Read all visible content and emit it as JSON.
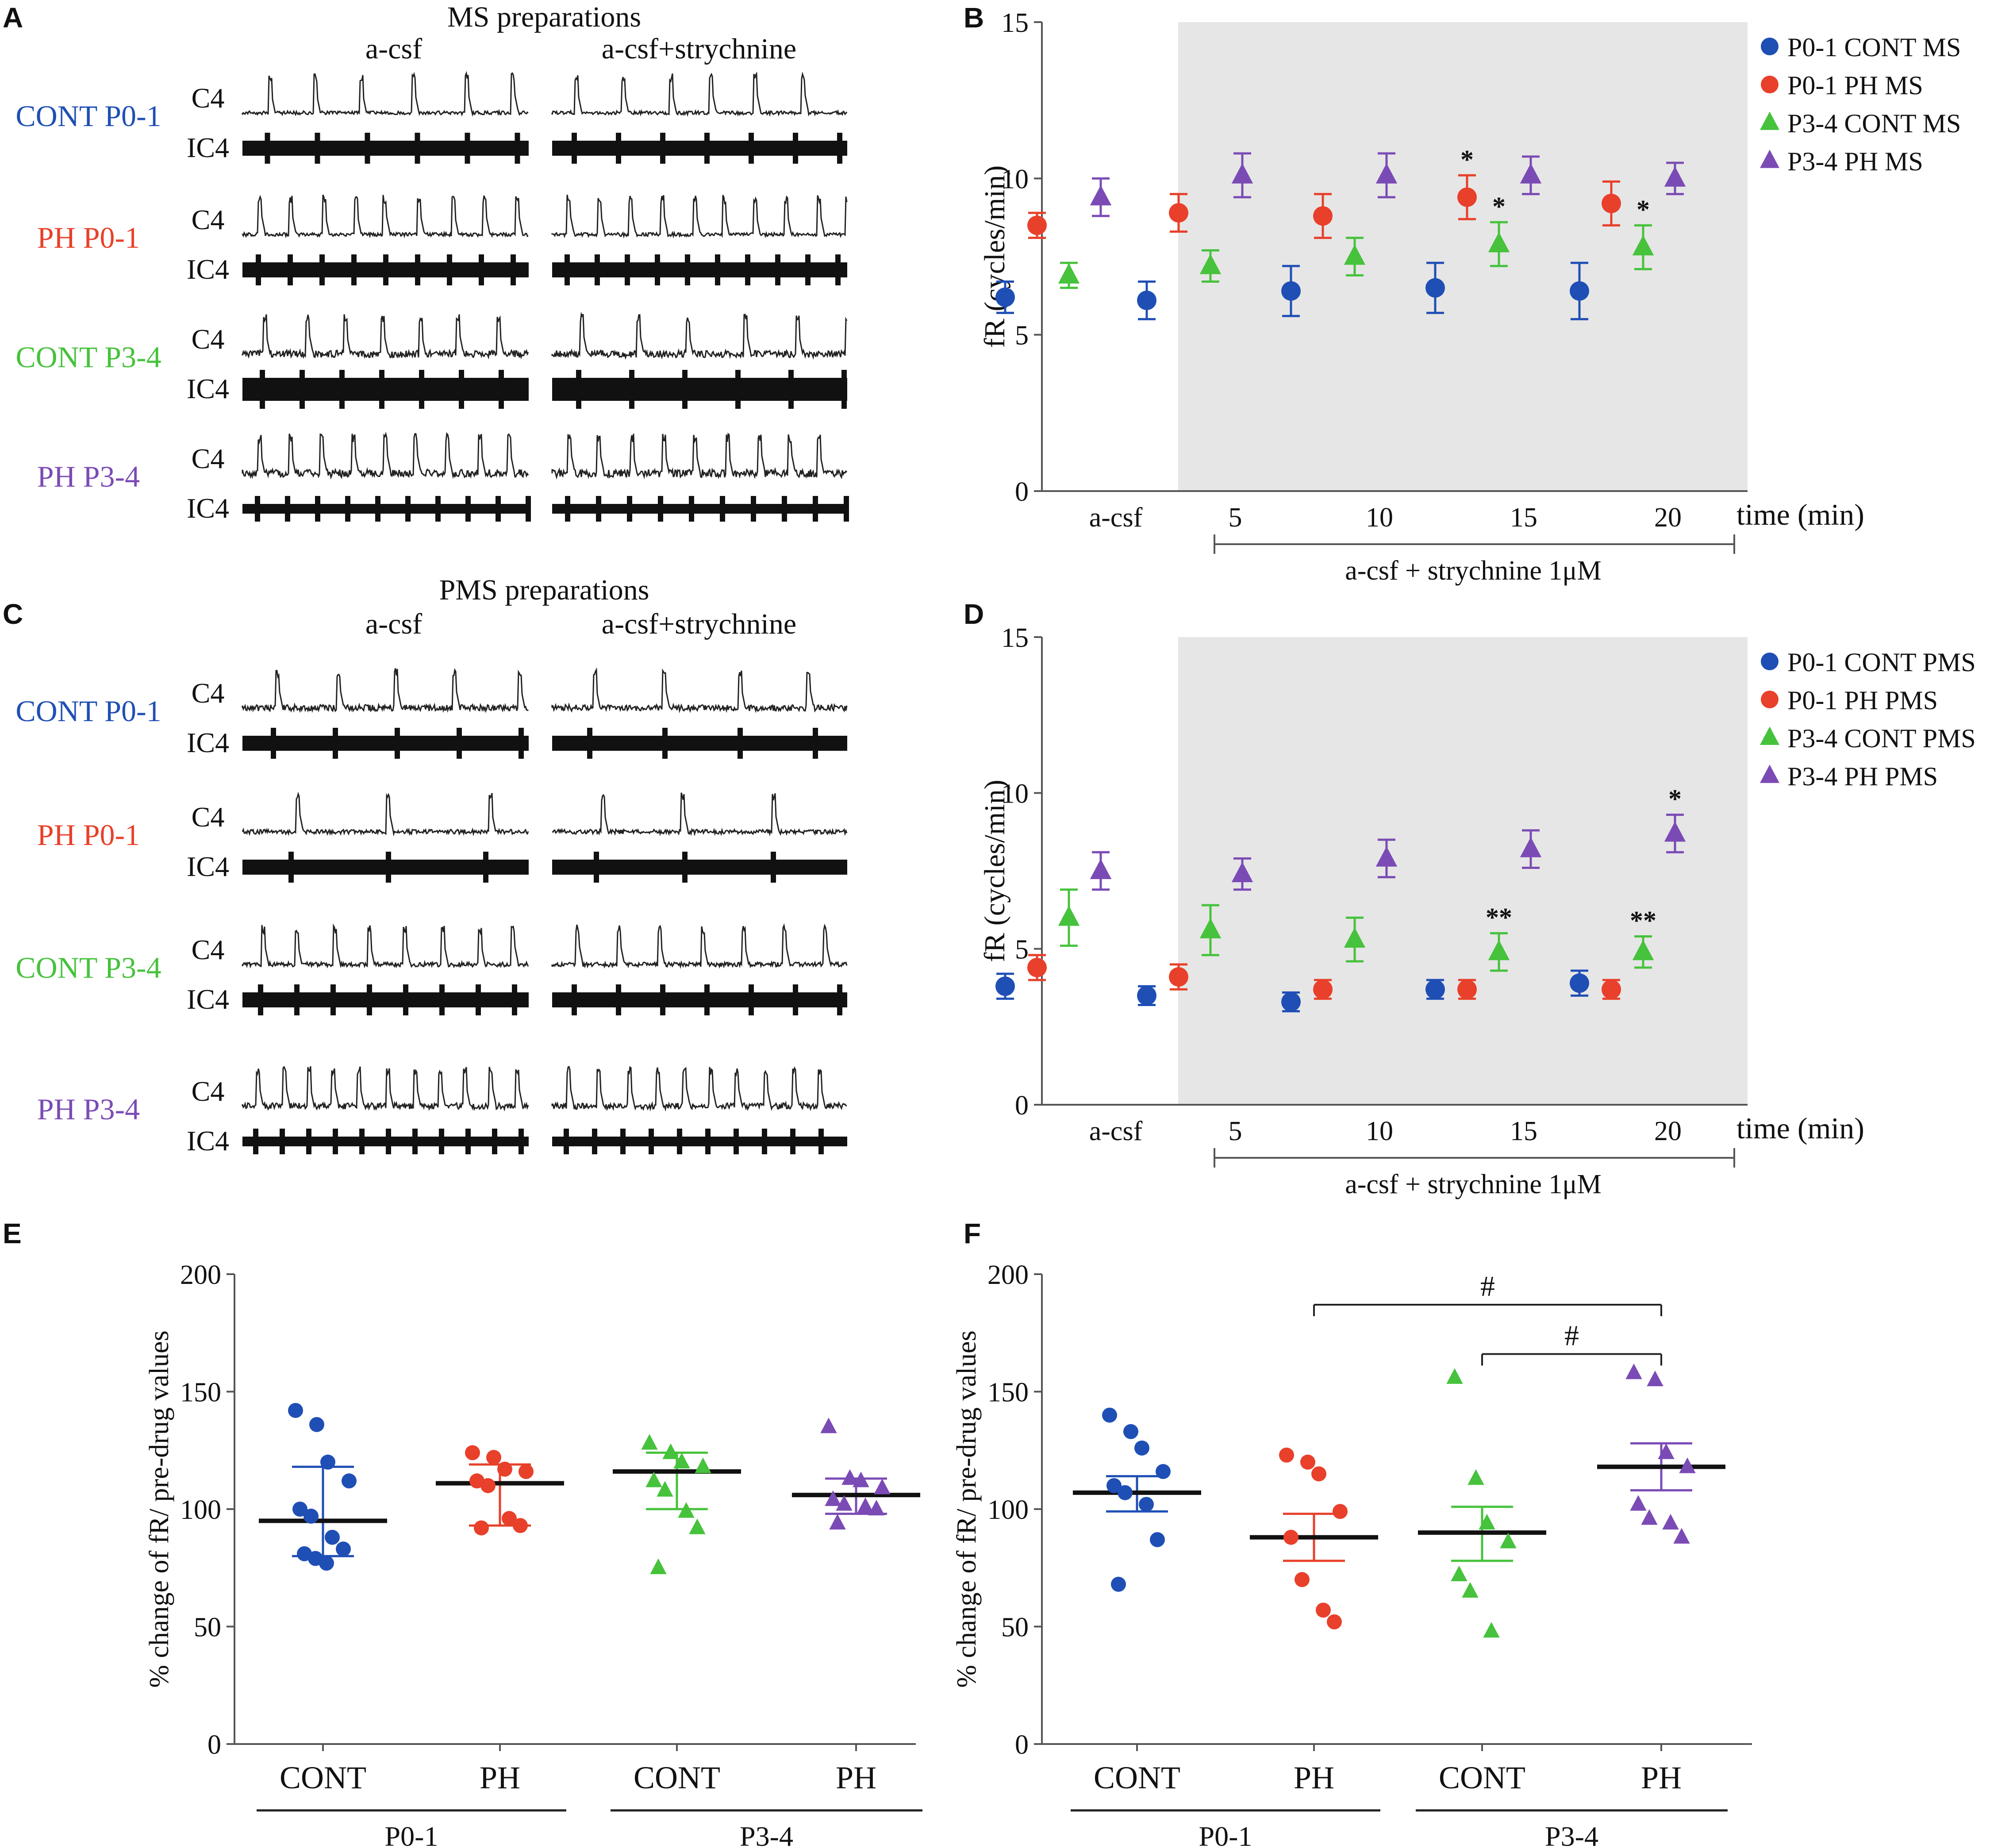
{
  "colors": {
    "cont_p01": "#1f4fb5",
    "ph_p01": "#e8402a",
    "cont_p34": "#46c23c",
    "ph_p34": "#7b4bb5",
    "shade": "#e6e6e6",
    "ink": "#111111"
  },
  "panel_letters": [
    "A",
    "B",
    "C",
    "D",
    "E",
    "F"
  ],
  "traces": [
    {
      "panel": "A",
      "title": "MS preparations",
      "cond_left": "a-csf",
      "cond_right": "a-csf+strychnine",
      "rows": [
        {
          "label": "CONT P0-1",
          "group": "cont_p01",
          "c4": "C4",
          "ic4": "IC4"
        },
        {
          "label": "PH P0-1",
          "group": "ph_p01",
          "c4": "C4",
          "ic4": "IC4"
        },
        {
          "label": "CONT P3-4",
          "group": "cont_p34",
          "c4": "C4",
          "ic4": "IC4"
        },
        {
          "label": "PH P3-4",
          "group": "ph_p34",
          "c4": "C4",
          "ic4": "IC4"
        }
      ]
    },
    {
      "panel": "C",
      "title": "PMS preparations",
      "cond_left": "a-csf",
      "cond_right": "a-csf+strychnine",
      "rows": [
        {
          "label": "CONT P0-1",
          "group": "cont_p01",
          "c4": "C4",
          "ic4": "IC4"
        },
        {
          "label": "PH P0-1",
          "group": "ph_p01",
          "c4": "C4",
          "ic4": "IC4"
        },
        {
          "label": "CONT P3-4",
          "group": "cont_p34",
          "c4": "C4",
          "ic4": "IC4"
        },
        {
          "label": "PH P3-4",
          "group": "ph_p34",
          "c4": "C4",
          "ic4": "IC4"
        }
      ]
    }
  ],
  "chart_data": [
    {
      "panel": "B",
      "type": "scatter",
      "ylabel": "fR (cycles/min)",
      "xlabel": "time (min)",
      "ylim": [
        0,
        15
      ],
      "yticks": [
        0,
        5,
        10,
        15
      ],
      "xticks": [
        "a-csf",
        "5",
        "10",
        "15",
        "20"
      ],
      "drug_label": "a-csf + strychnine 1μM",
      "shaded_region": "drug application (5–20 min)",
      "legend_position": "top-right",
      "series": [
        {
          "name": "P0-1 CONT MS",
          "group": "cont_p01",
          "marker": "circle",
          "values": [
            6.2,
            6.1,
            6.4,
            6.5,
            6.4
          ],
          "errors": [
            0.5,
            0.6,
            0.8,
            0.8,
            0.9
          ],
          "stars": [
            "",
            "",
            "",
            "",
            ""
          ]
        },
        {
          "name": "P0-1 PH MS",
          "group": "ph_p01",
          "marker": "circle",
          "values": [
            8.5,
            8.9,
            8.8,
            9.4,
            9.2
          ],
          "errors": [
            0.4,
            0.6,
            0.7,
            0.7,
            0.7
          ],
          "stars": [
            "",
            "",
            "",
            "*",
            ""
          ]
        },
        {
          "name": "P3-4 CONT MS",
          "group": "cont_p34",
          "marker": "triangle",
          "values": [
            6.9,
            7.2,
            7.5,
            7.9,
            7.8
          ],
          "errors": [
            0.4,
            0.5,
            0.6,
            0.7,
            0.7
          ],
          "stars": [
            "",
            "",
            "",
            "*",
            "*"
          ]
        },
        {
          "name": "P3-4 PH MS",
          "group": "ph_p34",
          "marker": "triangle",
          "values": [
            9.4,
            10.1,
            10.1,
            10.1,
            10.0
          ],
          "errors": [
            0.6,
            0.7,
            0.7,
            0.6,
            0.5
          ],
          "stars": [
            "",
            "",
            "",
            "",
            ""
          ]
        }
      ]
    },
    {
      "panel": "D",
      "type": "scatter",
      "ylabel": "fR (cycles/min)",
      "xlabel": "time (min)",
      "ylim": [
        0,
        15
      ],
      "yticks": [
        0,
        5,
        10,
        15
      ],
      "xticks": [
        "a-csf",
        "5",
        "10",
        "15",
        "20"
      ],
      "drug_label": "a-csf + strychnine 1μM",
      "shaded_region": "drug application (5–20 min)",
      "legend_position": "top-right",
      "series": [
        {
          "name": "P0-1 CONT PMS",
          "group": "cont_p01",
          "marker": "circle",
          "values": [
            3.8,
            3.5,
            3.3,
            3.7,
            3.9
          ],
          "errors": [
            0.4,
            0.3,
            0.3,
            0.3,
            0.4
          ],
          "stars": [
            "",
            "",
            "",
            "",
            ""
          ]
        },
        {
          "name": "P0-1 PH PMS",
          "group": "ph_p01",
          "marker": "circle",
          "values": [
            4.4,
            4.1,
            3.7,
            3.7,
            3.7
          ],
          "errors": [
            0.4,
            0.4,
            0.3,
            0.3,
            0.3
          ],
          "stars": [
            "",
            "",
            "",
            "",
            ""
          ]
        },
        {
          "name": "P3-4 CONT PMS",
          "group": "cont_p34",
          "marker": "triangle",
          "values": [
            6.0,
            5.6,
            5.3,
            4.9,
            4.9
          ],
          "errors": [
            0.9,
            0.8,
            0.7,
            0.6,
            0.5
          ],
          "stars": [
            "",
            "",
            "",
            "**",
            "**"
          ]
        },
        {
          "name": "P3-4 PH PMS",
          "group": "ph_p34",
          "marker": "triangle",
          "values": [
            7.5,
            7.4,
            7.9,
            8.2,
            8.7
          ],
          "errors": [
            0.6,
            0.5,
            0.6,
            0.6,
            0.6
          ],
          "stars": [
            "",
            "",
            "",
            "",
            "*"
          ]
        }
      ]
    },
    {
      "panel": "E",
      "type": "scatter",
      "ylabel": "% change of fR/ pre-drug values",
      "ylim": [
        0,
        200
      ],
      "yticks": [
        0,
        50,
        100,
        150,
        200
      ],
      "categories": [
        "CONT",
        "PH",
        "CONT",
        "PH"
      ],
      "age_groups": [
        "P0-1",
        "P3-4"
      ],
      "groups": [
        {
          "group": "cont_p01",
          "marker": "circle",
          "mean": 95,
          "err_low": 80,
          "err_high": 118,
          "points": [
            142,
            136,
            120,
            112,
            100,
            97,
            88,
            83,
            81,
            79,
            77
          ]
        },
        {
          "group": "ph_p01",
          "marker": "circle",
          "mean": 111,
          "err_low": 93,
          "err_high": 119,
          "points": [
            124,
            122,
            117,
            116,
            112,
            110,
            96,
            93,
            92
          ]
        },
        {
          "group": "cont_p34",
          "marker": "triangle",
          "mean": 116,
          "err_low": 100,
          "err_high": 124,
          "points": [
            128,
            124,
            120,
            118,
            112,
            108,
            99,
            92,
            75
          ]
        },
        {
          "group": "ph_p34",
          "marker": "triangle",
          "mean": 106,
          "err_low": 98,
          "err_high": 113,
          "points": [
            135,
            113,
            112,
            109,
            104,
            102,
            101,
            100,
            94
          ]
        }
      ]
    },
    {
      "panel": "F",
      "type": "scatter",
      "ylabel": "% change of fR/ pre-drug values",
      "ylim": [
        0,
        200
      ],
      "yticks": [
        0,
        50,
        100,
        150,
        200
      ],
      "categories": [
        "CONT",
        "PH",
        "CONT",
        "PH"
      ],
      "age_groups": [
        "P0-1",
        "P3-4"
      ],
      "significance": [
        {
          "from": 1,
          "to": 3,
          "label": "#"
        },
        {
          "from": 2,
          "to": 3,
          "label": "#"
        }
      ],
      "groups": [
        {
          "group": "cont_p01",
          "marker": "circle",
          "mean": 107,
          "err_low": 99,
          "err_high": 114,
          "points": [
            140,
            133,
            126,
            116,
            110,
            107,
            102,
            87,
            68
          ]
        },
        {
          "group": "ph_p01",
          "marker": "circle",
          "mean": 88,
          "err_low": 78,
          "err_high": 98,
          "points": [
            123,
            120,
            115,
            99,
            88,
            70,
            57,
            52
          ]
        },
        {
          "group": "cont_p34",
          "marker": "triangle",
          "mean": 90,
          "err_low": 78,
          "err_high": 101,
          "points": [
            156,
            113,
            94,
            86,
            72,
            65,
            48
          ]
        },
        {
          "group": "ph_p34",
          "marker": "triangle",
          "mean": 118,
          "err_low": 108,
          "err_high": 128,
          "points": [
            158,
            155,
            124,
            118,
            102,
            96,
            94,
            88
          ]
        }
      ]
    }
  ]
}
